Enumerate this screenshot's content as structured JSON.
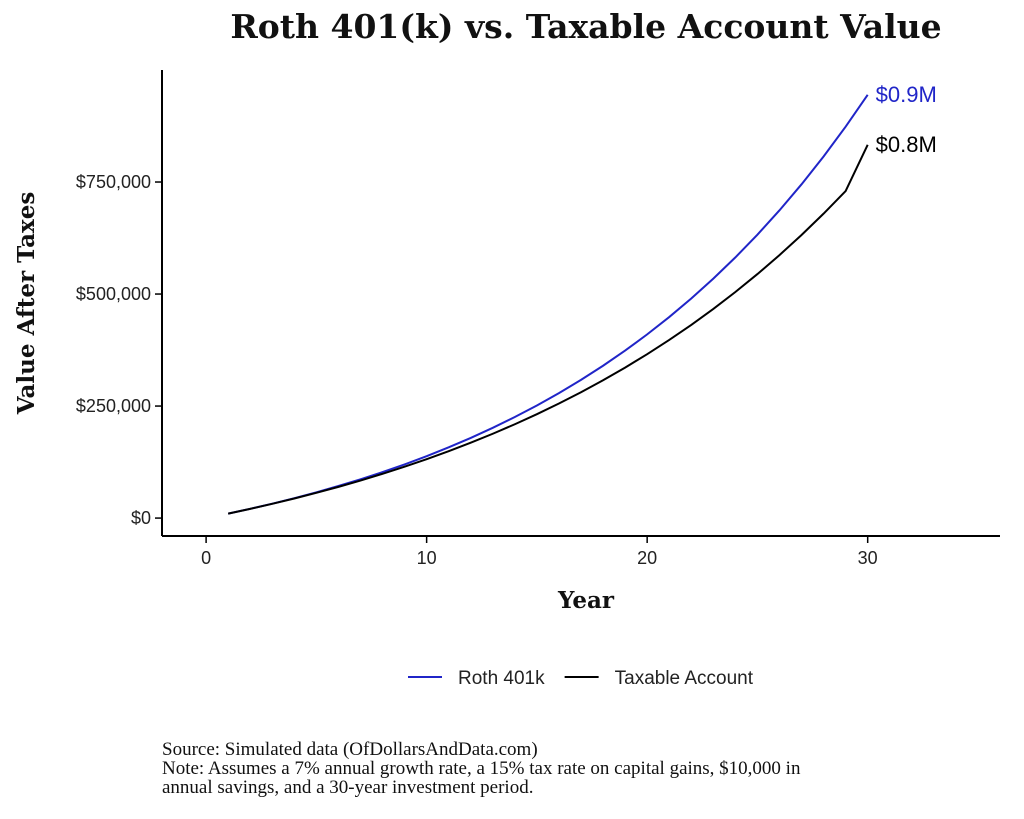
{
  "chart_data": {
    "type": "line",
    "title": "Roth 401(k) vs. Taxable Account Value",
    "xlabel": "Year",
    "ylabel": "Value After Taxes",
    "xlim": [
      -2,
      36
    ],
    "ylim": [
      -40000,
      1000000
    ],
    "x_ticks": [
      0,
      10,
      20,
      30
    ],
    "x_tick_labels": [
      "0",
      "10",
      "20",
      "30"
    ],
    "y_ticks": [
      0,
      250000,
      500000,
      750000
    ],
    "y_tick_labels": [
      "$0",
      "$250,000",
      "$500,000",
      "$750,000"
    ],
    "grid": false,
    "legend": "bottom",
    "x": [
      1,
      2,
      3,
      4,
      5,
      6,
      7,
      8,
      9,
      10,
      11,
      12,
      13,
      14,
      15,
      16,
      17,
      18,
      19,
      20,
      21,
      22,
      23,
      24,
      25,
      26,
      27,
      28,
      29,
      30
    ],
    "series": [
      {
        "name": "Roth 401k",
        "color": "#2025c8",
        "end_label": "$0.9M",
        "values": [
          10000,
          20700,
          32149,
          44399,
          57507,
          71533,
          86540,
          102598,
          119780,
          138164,
          157836,
          178885,
          201406,
          225505,
          251290,
          278880,
          308402,
          339990,
          373790,
          409955,
          448652,
          490058,
          534362,
          581767,
          632491,
          686765,
          744838,
          806977,
          873466,
          944608
        ]
      },
      {
        "name": "Taxable Account",
        "color": "#000000",
        "end_label": "$0.8M",
        "values": [
          10000,
          20595,
          31820,
          43713,
          56313,
          69663,
          83806,
          98790,
          114665,
          131484,
          149303,
          168182,
          188183,
          209374,
          231825,
          255611,
          280811,
          307510,
          335796,
          365764,
          397514,
          431153,
          466792,
          504550,
          544553,
          586935,
          631837,
          679410,
          729811,
          833000
        ]
      }
    ]
  },
  "notes": {
    "source": "Source:  Simulated data (OfDollarsAndData.com)",
    "note_line1": "Note: Assumes a 7% annual growth rate, a 15% tax rate on capital gains, $10,000 in",
    "note_line2": "annual savings, and a 30-year investment period."
  }
}
